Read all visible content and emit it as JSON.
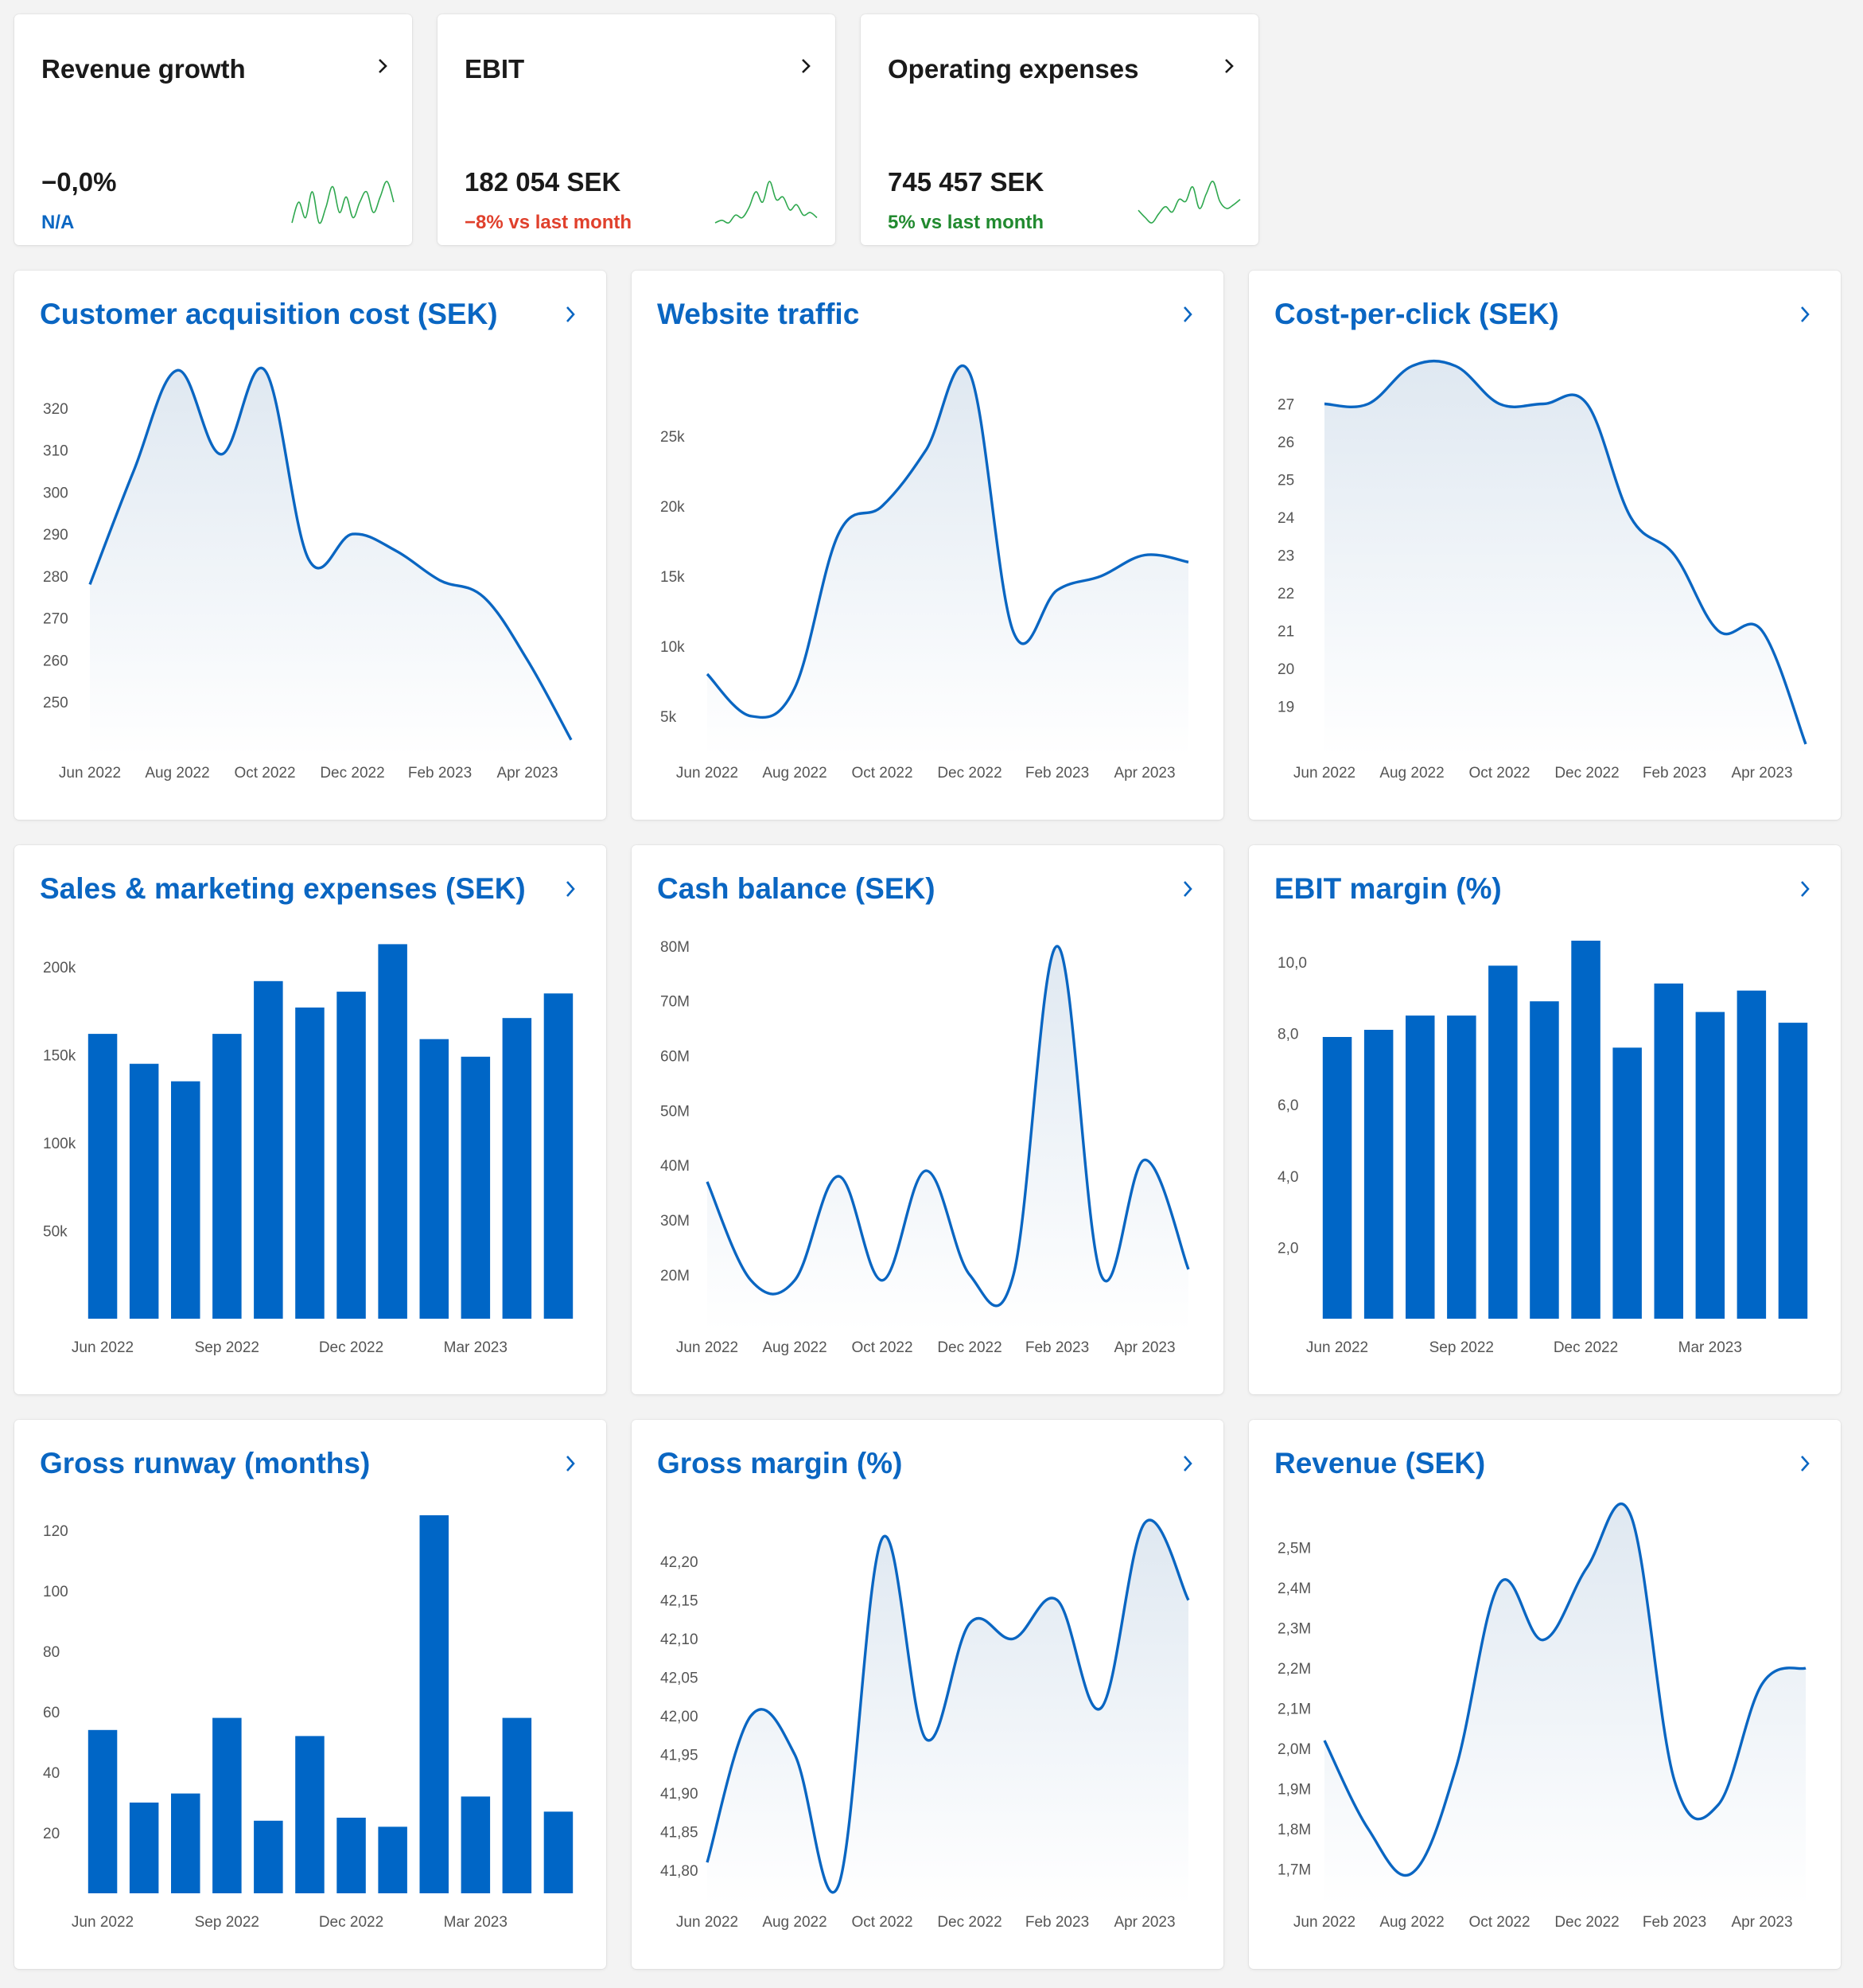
{
  "colors": {
    "accent": "#0a66c2",
    "bar": "#0066c6",
    "negative": "#e0402c",
    "positive": "#218a2f",
    "neutral": "#0a66c2",
    "spark": "#2fa84f"
  },
  "kpis": [
    {
      "title": "Revenue growth",
      "value": "−0,0%",
      "sub": "N/A",
      "sub_status": "neutral",
      "spark": [
        5,
        5.4,
        5.1,
        5.6,
        5.0,
        5.3,
        5.7,
        5.2,
        5.5,
        5.1,
        5.4,
        5.6,
        5.2,
        5.5,
        5.8,
        5.4
      ]
    },
    {
      "title": "EBIT",
      "value": "182 054 SEK",
      "sub": "−8% vs last month",
      "sub_status": "negative",
      "spark": [
        4,
        4.1,
        4.0,
        4.3,
        4.2,
        4.6,
        5.2,
        4.8,
        5.6,
        4.9,
        5.0,
        4.5,
        4.7,
        4.3,
        4.4,
        4.2
      ]
    },
    {
      "title": "Operating expenses",
      "value": "745 457 SEK",
      "sub": "5% vs last month",
      "sub_status": "positive",
      "spark": [
        5,
        4.2,
        3.6,
        4.6,
        5.4,
        4.8,
        6.2,
        6.0,
        7.6,
        5.2,
        6.8,
        8.2,
        6.0,
        5.2,
        5.6,
        6.2
      ]
    }
  ],
  "chart_data": [
    {
      "title": "Customer acquisition cost (SEK)",
      "type": "area",
      "categories": [
        "Jun 2022",
        "Jul 2022",
        "Aug 2022",
        "Sep 2022",
        "Oct 2022",
        "Nov 2022",
        "Dec 2022",
        "Jan 2023",
        "Feb 2023",
        "Mar 2023",
        "Apr 2023",
        "May 2023"
      ],
      "values": [
        278,
        305,
        329,
        309,
        329,
        284,
        290,
        286,
        279,
        275,
        260,
        241
      ],
      "ylim": [
        240,
        330
      ],
      "yticks": [
        250,
        260,
        270,
        280,
        290,
        300,
        310,
        320
      ],
      "ytick_labels": [
        "250",
        "260",
        "270",
        "280",
        "290",
        "300",
        "310",
        "320"
      ],
      "xtick_labels": [
        "Jun 2022",
        "Aug 2022",
        "Oct 2022",
        "Dec 2022",
        "Feb 2023",
        "Apr 2023"
      ],
      "xtick_index": [
        0,
        2,
        4,
        6,
        8,
        10
      ]
    },
    {
      "title": "Website traffic",
      "type": "area",
      "categories": [
        "Jun 2022",
        "Jul 2022",
        "Aug 2022",
        "Sep 2022",
        "Oct 2022",
        "Nov 2022",
        "Dec 2022",
        "Jan 2023",
        "Feb 2023",
        "Mar 2023",
        "Apr 2023",
        "May 2023"
      ],
      "values": [
        8000,
        5000,
        7000,
        18000,
        20000,
        24000,
        29500,
        11000,
        14000,
        15000,
        16500,
        16000
      ],
      "ylim": [
        3000,
        30000
      ],
      "yticks": [
        5000,
        10000,
        15000,
        20000,
        25000
      ],
      "ytick_labels": [
        "5k",
        "10k",
        "15k",
        "20k",
        "25k"
      ],
      "xtick_labels": [
        "Jun 2022",
        "Aug 2022",
        "Oct 2022",
        "Dec 2022",
        "Feb 2023",
        "Apr 2023"
      ],
      "xtick_index": [
        0,
        2,
        4,
        6,
        8,
        10
      ]
    },
    {
      "title": "Cost-per-click (SEK)",
      "type": "area",
      "categories": [
        "Jun 2022",
        "Jul 2022",
        "Aug 2022",
        "Sep 2022",
        "Oct 2022",
        "Nov 2022",
        "Dec 2022",
        "Jan 2023",
        "Feb 2023",
        "Mar 2023",
        "Apr 2023",
        "May 2023"
      ],
      "values": [
        27,
        27,
        28,
        28,
        27,
        27,
        27,
        24,
        23,
        21,
        21,
        18
      ],
      "ylim": [
        18,
        28
      ],
      "yticks": [
        19,
        20,
        21,
        22,
        23,
        24,
        25,
        26,
        27
      ],
      "ytick_labels": [
        "19",
        "20",
        "21",
        "22",
        "23",
        "24",
        "25",
        "26",
        "27"
      ],
      "xtick_labels": [
        "Jun 2022",
        "Aug 2022",
        "Oct 2022",
        "Dec 2022",
        "Feb 2023",
        "Apr 2023"
      ],
      "xtick_index": [
        0,
        2,
        4,
        6,
        8,
        10
      ]
    },
    {
      "title": "Sales & marketing expenses (SEK)",
      "type": "bar",
      "categories": [
        "Jun 2022",
        "Jul 2022",
        "Aug 2022",
        "Sep 2022",
        "Oct 2022",
        "Nov 2022",
        "Dec 2022",
        "Jan 2023",
        "Feb 2023",
        "Mar 2023",
        "Apr 2023",
        "May 2023"
      ],
      "values": [
        162000,
        145000,
        135000,
        162000,
        192000,
        177000,
        186000,
        213000,
        159000,
        149000,
        171000,
        185000
      ],
      "ylim": [
        0,
        215000
      ],
      "yticks": [
        50000,
        100000,
        150000,
        200000
      ],
      "ytick_labels": [
        "50k",
        "100k",
        "150k",
        "200k"
      ],
      "xtick_labels": [
        "Jun 2022",
        "Sep 2022",
        "Dec 2022",
        "Mar 2023"
      ],
      "xtick_index": [
        0,
        3,
        6,
        9
      ]
    },
    {
      "title": "Cash balance (SEK)",
      "type": "area",
      "categories": [
        "Jun 2022",
        "Jul 2022",
        "Aug 2022",
        "Sep 2022",
        "Oct 2022",
        "Nov 2022",
        "Dec 2022",
        "Jan 2023",
        "Feb 2023",
        "Mar 2023",
        "Apr 2023",
        "May 2023"
      ],
      "values": [
        37000000,
        19000000,
        19000000,
        38000000,
        19000000,
        39000000,
        20000000,
        20000000,
        80000000,
        20000000,
        41000000,
        21000000
      ],
      "ylim": [
        12000000,
        81000000
      ],
      "yticks": [
        20000000,
        30000000,
        40000000,
        50000000,
        60000000,
        70000000,
        80000000
      ],
      "ytick_labels": [
        "20M",
        "30M",
        "40M",
        "50M",
        "60M",
        "70M",
        "80M"
      ],
      "xtick_labels": [
        "Jun 2022",
        "Aug 2022",
        "Oct 2022",
        "Dec 2022",
        "Feb 2023",
        "Apr 2023"
      ],
      "xtick_index": [
        0,
        2,
        4,
        6,
        8,
        10
      ]
    },
    {
      "title": "EBIT margin (%)",
      "type": "bar",
      "categories": [
        "Jun 2022",
        "Jul 2022",
        "Aug 2022",
        "Sep 2022",
        "Oct 2022",
        "Nov 2022",
        "Dec 2022",
        "Jan 2023",
        "Feb 2023",
        "Mar 2023",
        "Apr 2023",
        "May 2023"
      ],
      "values": [
        7.9,
        8.1,
        8.5,
        8.5,
        9.9,
        8.9,
        10.6,
        7.6,
        9.4,
        8.6,
        9.2,
        8.3
      ],
      "ylim": [
        0,
        10.6
      ],
      "yticks": [
        2,
        4,
        6,
        8,
        10
      ],
      "ytick_labels": [
        "2,0",
        "4,0",
        "6,0",
        "8,0",
        "10,0"
      ],
      "xtick_labels": [
        "Jun 2022",
        "Sep 2022",
        "Dec 2022",
        "Mar 2023"
      ],
      "xtick_index": [
        0,
        3,
        6,
        9
      ]
    },
    {
      "title": "Gross runway (months)",
      "type": "bar",
      "categories": [
        "Jun 2022",
        "Jul 2022",
        "Aug 2022",
        "Sep 2022",
        "Oct 2022",
        "Nov 2022",
        "Dec 2022",
        "Jan 2023",
        "Feb 2023",
        "Mar 2023",
        "Apr 2023",
        "May 2023"
      ],
      "values": [
        54,
        30,
        33,
        58,
        24,
        52,
        25,
        22,
        125,
        32,
        58,
        27
      ],
      "ylim": [
        0,
        125
      ],
      "yticks": [
        20,
        40,
        60,
        80,
        100,
        120
      ],
      "ytick_labels": [
        "20",
        "40",
        "60",
        "80",
        "100",
        "120"
      ],
      "xtick_labels": [
        "Jun 2022",
        "Sep 2022",
        "Dec 2022",
        "Mar 2023"
      ],
      "xtick_index": [
        0,
        3,
        6,
        9
      ]
    },
    {
      "title": "Gross margin (%)",
      "type": "area",
      "categories": [
        "Jun 2022",
        "Jul 2022",
        "Aug 2022",
        "Sep 2022",
        "Oct 2022",
        "Nov 2022",
        "Dec 2022",
        "Jan 2023",
        "Feb 2023",
        "Mar 2023",
        "Apr 2023",
        "May 2023"
      ],
      "values": [
        41.81,
        42.0,
        41.95,
        41.78,
        42.23,
        41.97,
        42.12,
        42.1,
        42.15,
        42.01,
        42.25,
        42.15
      ],
      "ylim": [
        41.77,
        42.26
      ],
      "yticks": [
        41.8,
        41.85,
        41.9,
        41.95,
        42.0,
        42.05,
        42.1,
        42.15,
        42.2
      ],
      "ytick_labels": [
        "41,80",
        "41,85",
        "41,90",
        "41,95",
        "42,00",
        "42,05",
        "42,10",
        "42,15",
        "42,20"
      ],
      "xtick_labels": [
        "Jun 2022",
        "Aug 2022",
        "Oct 2022",
        "Dec 2022",
        "Feb 2023",
        "Apr 2023"
      ],
      "xtick_index": [
        0,
        2,
        4,
        6,
        8,
        10
      ]
    },
    {
      "title": "Revenue (SEK)",
      "type": "area",
      "categories": [
        "Jun 2022",
        "Jul 2022",
        "Aug 2022",
        "Sep 2022",
        "Oct 2022",
        "Nov 2022",
        "Dec 2022",
        "Jan 2023",
        "Feb 2023",
        "Mar 2023",
        "Apr 2023",
        "May 2023"
      ],
      "values": [
        2020000,
        1800000,
        1690000,
        1950000,
        2410000,
        2270000,
        2450000,
        2580000,
        1920000,
        1860000,
        2160000,
        2200000
      ],
      "ylim": [
        1640000,
        2580000
      ],
      "yticks": [
        1700000,
        1800000,
        1900000,
        2000000,
        2100000,
        2200000,
        2300000,
        2400000,
        2500000
      ],
      "ytick_labels": [
        "1,7M",
        "1,8M",
        "1,9M",
        "2,0M",
        "2,1M",
        "2,2M",
        "2,3M",
        "2,4M",
        "2,5M"
      ],
      "xtick_labels": [
        "Jun 2022",
        "Aug 2022",
        "Oct 2022",
        "Dec 2022",
        "Feb 2023",
        "Apr 2023"
      ],
      "xtick_index": [
        0,
        2,
        4,
        6,
        8,
        10
      ]
    }
  ]
}
